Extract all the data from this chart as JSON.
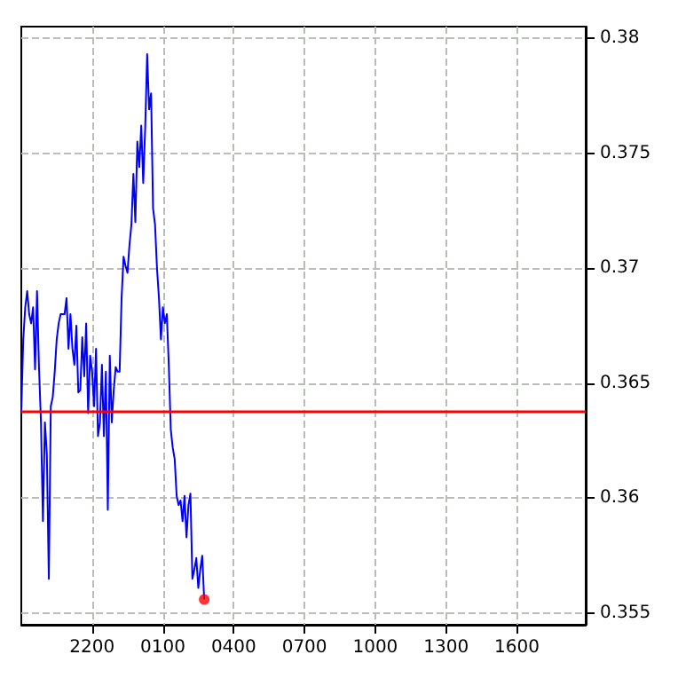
{
  "chart_data": {
    "type": "line",
    "categories": [
      null,
      null,
      null,
      null,
      null,
      null,
      null,
      null,
      null,
      null,
      null,
      null,
      null,
      null,
      null,
      null,
      null,
      null,
      null,
      null,
      null,
      null,
      null,
      null,
      null,
      null,
      null,
      null,
      null,
      null,
      null,
      null,
      null,
      null,
      null,
      null,
      "2200",
      null,
      null,
      null,
      null,
      null,
      null,
      null,
      null,
      null,
      null,
      null,
      null,
      null,
      null,
      null,
      null,
      null,
      null,
      null,
      null,
      null,
      null,
      null,
      null,
      null,
      null,
      null,
      null,
      null,
      null,
      null,
      null,
      null,
      null,
      null,
      "0100",
      null,
      null,
      null,
      null,
      null,
      null,
      null,
      null,
      null,
      null,
      null,
      null,
      null,
      null,
      null,
      null,
      null,
      null,
      null,
      null,
      null,
      null,
      null,
      null,
      null,
      null,
      null,
      null,
      null,
      null,
      null,
      null,
      null,
      null,
      null,
      "0400",
      null,
      null,
      null,
      null,
      null,
      null,
      null,
      null,
      null,
      null,
      null,
      null,
      null,
      null,
      null,
      null,
      null,
      null,
      null,
      null,
      null,
      null,
      null,
      null,
      null,
      null,
      null,
      null,
      null,
      null,
      null,
      null,
      null,
      null,
      null,
      "0700",
      null,
      null,
      null,
      null,
      null,
      null,
      null,
      null,
      null,
      null,
      null,
      null,
      null,
      null,
      null,
      null,
      null,
      null,
      null,
      null,
      null,
      null,
      null,
      null,
      null,
      null,
      null,
      null,
      null,
      null,
      null,
      null,
      null,
      null,
      null,
      "1000",
      null,
      null,
      null,
      null,
      null,
      null,
      null,
      null,
      null,
      null,
      null,
      null,
      null,
      null,
      null,
      null,
      null,
      null,
      null,
      null,
      null,
      null,
      null,
      null,
      null,
      null,
      null,
      null,
      null,
      null,
      null,
      null,
      null,
      null,
      null,
      "1300",
      null,
      null,
      null,
      null,
      null,
      null,
      null,
      null,
      null,
      null,
      null,
      null,
      null,
      null,
      null,
      null,
      null,
      null,
      null,
      null,
      null,
      null,
      null,
      null,
      null,
      null,
      null,
      null,
      null,
      null,
      null,
      null,
      null,
      null,
      null,
      "1600",
      null,
      null,
      null,
      null,
      null,
      null,
      null,
      null,
      null,
      null,
      null,
      null,
      null,
      null,
      null,
      null,
      null,
      null,
      null,
      null,
      null,
      null,
      null,
      null,
      null,
      null,
      null,
      null,
      null,
      null,
      null,
      null,
      null,
      null,
      null
    ],
    "ylim": [
      0.3545,
      0.3805
    ],
    "yticks": [
      0.355,
      0.36,
      0.365,
      0.37,
      0.375,
      0.38
    ],
    "grid": true,
    "marker": "none",
    "line_style": "solid",
    "ref_lines": [
      {
        "axis": "y",
        "value": 0.3638,
        "color": "#ff0000"
      }
    ],
    "series": [
      {
        "color": "#0000ff",
        "values": [
          0.3638,
          0.3669,
          0.3683,
          0.369,
          0.368,
          0.3676,
          0.3683,
          0.3656,
          0.369,
          0.3657,
          0.3633,
          0.359,
          0.3633,
          0.3619,
          0.3565,
          0.364,
          0.3644,
          0.3655,
          0.3669,
          0.3676,
          0.368,
          0.368,
          0.368,
          0.3687,
          0.3665,
          0.368,
          0.3665,
          0.3658,
          0.3675,
          0.3646,
          0.3647,
          0.367,
          0.3653,
          0.3676,
          0.3637,
          0.3662,
          0.3655,
          0.364,
          0.3665,
          0.3627,
          0.3633,
          0.3658,
          0.3627,
          0.3655,
          0.3595,
          0.3662,
          0.3633,
          0.3647,
          0.3657,
          0.3655,
          0.3655,
          0.3687,
          0.3705,
          0.3701,
          0.3698,
          0.371,
          0.3719,
          0.3741,
          0.372,
          0.3755,
          0.3744,
          0.3762,
          0.3737,
          0.3761,
          0.3793,
          0.3769,
          0.3776,
          0.3726,
          0.3719,
          0.37,
          0.3687,
          0.3669,
          0.3683,
          0.3676,
          0.368,
          0.3658,
          0.363,
          0.3622,
          0.3617,
          0.3601,
          0.3597,
          0.3599,
          0.359,
          0.3601,
          0.3583,
          0.3597,
          0.3602,
          0.3565,
          0.3569,
          0.3574,
          0.3561,
          0.3569,
          0.3575,
          0.3556,
          null,
          null,
          null,
          null,
          null,
          null,
          null,
          null,
          null,
          null,
          null,
          null,
          null,
          null,
          null,
          null,
          null,
          null,
          null,
          null,
          null,
          null,
          null,
          null,
          null,
          null,
          null,
          null,
          null,
          null,
          null,
          null,
          null,
          null,
          null,
          null,
          null,
          null,
          null,
          null,
          null,
          null,
          null,
          null,
          null,
          null,
          null,
          null,
          null,
          null,
          null,
          null,
          null,
          null,
          null,
          null,
          null,
          null,
          null,
          null,
          null,
          null,
          null,
          null,
          null,
          null,
          null,
          null,
          null,
          null,
          null,
          null,
          null,
          null,
          null,
          null,
          null,
          null,
          null,
          null,
          null,
          null,
          null,
          null,
          null,
          null,
          null,
          null,
          null,
          null,
          null,
          null,
          null,
          null,
          null,
          null,
          null,
          null,
          null,
          null,
          null,
          null,
          null,
          null,
          null,
          null,
          null,
          null,
          null,
          null,
          null,
          null,
          null,
          null,
          null,
          null,
          null,
          null,
          null,
          null,
          null,
          null,
          null,
          null,
          null,
          null,
          null,
          null,
          null,
          null,
          null,
          null,
          null,
          null,
          null,
          null,
          null,
          null,
          null,
          null,
          null,
          null,
          null,
          null,
          null,
          null,
          null,
          null,
          null,
          null,
          null,
          null,
          null,
          null,
          null,
          null,
          null,
          null,
          null,
          null,
          null,
          null,
          null,
          null,
          null,
          null,
          null,
          null,
          null,
          null,
          null,
          null,
          null,
          null,
          null,
          null,
          null,
          null,
          null,
          null,
          null,
          null,
          null,
          null,
          null,
          null,
          null,
          null,
          null,
          null,
          null,
          null,
          null,
          null
        ]
      },
      {
        "type": "scatter",
        "marker": "circle",
        "color": "#ff0000",
        "values": [
          null,
          null,
          null,
          null,
          null,
          null,
          null,
          null,
          null,
          null,
          null,
          null,
          null,
          null,
          null,
          null,
          null,
          null,
          null,
          null,
          null,
          null,
          null,
          null,
          null,
          null,
          null,
          null,
          null,
          null,
          null,
          null,
          null,
          null,
          null,
          null,
          null,
          null,
          null,
          null,
          null,
          null,
          null,
          null,
          null,
          null,
          null,
          null,
          null,
          null,
          null,
          null,
          null,
          null,
          null,
          null,
          null,
          null,
          null,
          null,
          null,
          null,
          null,
          null,
          null,
          null,
          null,
          null,
          null,
          null,
          null,
          null,
          null,
          null,
          null,
          null,
          null,
          null,
          null,
          null,
          null,
          null,
          null,
          null,
          null,
          null,
          null,
          null,
          null,
          null,
          null,
          null,
          null,
          0.3556,
          null,
          null,
          null,
          null,
          null,
          null,
          null,
          null,
          null,
          null,
          null,
          null,
          null,
          null,
          null,
          null,
          null,
          null,
          null,
          null,
          null,
          null,
          null,
          null,
          null,
          null,
          null,
          null,
          null,
          null,
          null,
          null,
          null,
          null,
          null,
          null,
          null,
          null,
          null,
          null,
          null,
          null,
          null,
          null,
          null,
          null,
          null,
          null,
          null,
          null,
          null,
          null,
          null,
          null,
          null,
          null,
          null,
          null,
          null,
          null,
          null,
          null,
          null,
          null,
          null,
          null,
          null,
          null,
          null,
          null,
          null,
          null,
          null,
          null,
          null,
          null,
          null,
          null,
          null,
          null,
          null,
          null,
          null,
          null,
          null,
          null,
          null,
          null,
          null,
          null,
          null,
          null,
          null,
          null,
          null,
          null,
          null,
          null,
          null,
          null,
          null,
          null,
          null,
          null,
          null,
          null,
          null,
          null,
          null,
          null,
          null,
          null,
          null,
          null,
          null,
          null,
          null,
          null,
          null,
          null,
          null,
          null,
          null,
          null,
          null,
          null,
          null,
          null,
          null,
          null,
          null,
          null,
          null,
          null,
          null,
          null,
          null,
          null,
          null,
          null,
          null,
          null,
          null,
          null,
          null,
          null,
          null,
          null,
          null,
          null,
          null,
          null,
          null,
          null,
          null,
          null,
          null,
          null,
          null,
          null,
          null,
          null,
          null,
          null,
          null,
          null,
          null,
          null,
          null,
          null,
          null,
          null,
          null,
          null,
          null,
          null,
          null,
          null,
          null,
          null,
          null,
          null,
          null,
          null,
          null,
          null,
          null,
          null,
          null,
          null,
          null,
          null,
          null,
          null
        ]
      }
    ]
  }
}
